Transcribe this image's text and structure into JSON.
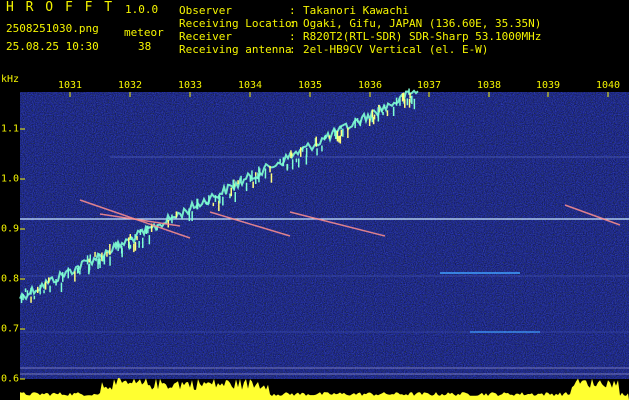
{
  "header": {
    "app_name": "H R O F F T",
    "version": "1.0.0",
    "file_name": "2508251030.png",
    "meteor_label": "meteor",
    "datetime": "25.08.25 10:30",
    "meteor_count": "38"
  },
  "info": [
    {
      "key": "Observer",
      "value": "Takanori Kawachi"
    },
    {
      "key": "Receiving Location",
      "value": "Ogaki, Gifu, JAPAN (136.60E, 35.35N)"
    },
    {
      "key": "Receiver",
      "value": "R820T2(RTL-SDR) SDR-Sharp 53.1000MHz"
    },
    {
      "key": "Receiving antenna",
      "value": "2el-HB9CV Vertical (el. E-W)"
    }
  ],
  "spectrogram": {
    "y_unit": "kHz",
    "x_ticks": [
      "1031",
      "1032",
      "1033",
      "1034",
      "1035",
      "1036",
      "1037",
      "1038",
      "1039",
      "1040"
    ],
    "y_ticks": [
      "1.1",
      "1.0",
      "0.9",
      "0.8",
      "0.7",
      "0.6"
    ],
    "colors": {
      "text": "#f5f500",
      "background": "#0a0a5a",
      "signal": "#7fffd4",
      "meteor": "#ff9090",
      "strip": "#ffff30"
    }
  }
}
